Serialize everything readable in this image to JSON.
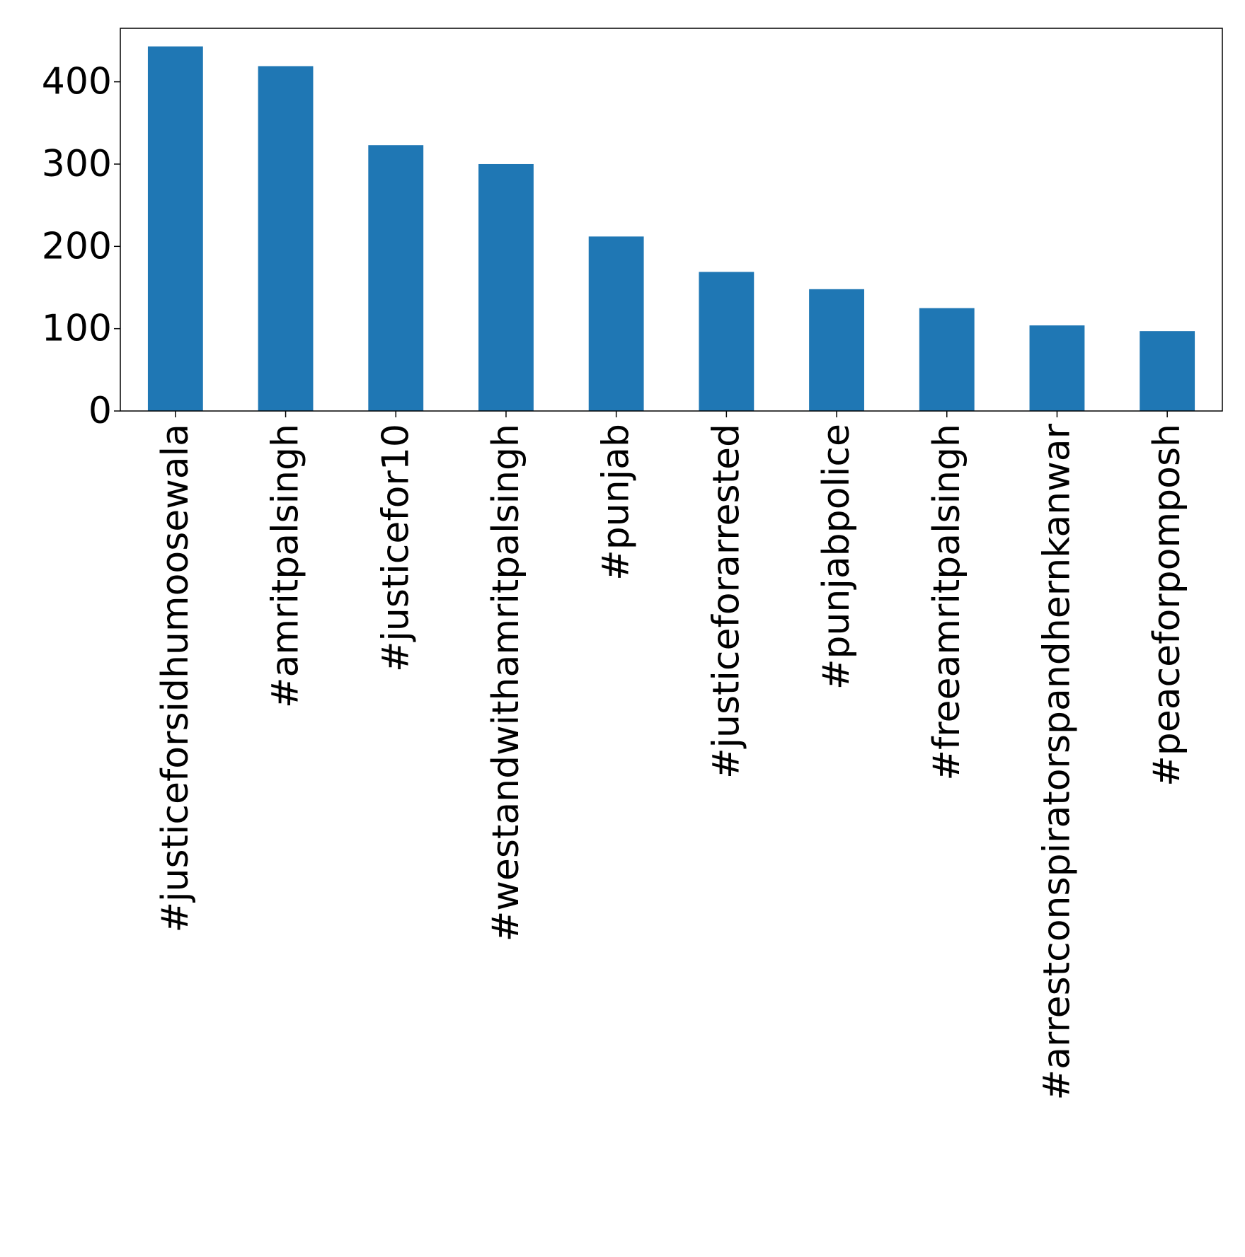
{
  "chart_data": {
    "type": "bar",
    "title": "",
    "xlabel": "",
    "ylabel": "",
    "categories": [
      "#justiceforsidhumoosewala",
      "#amritpalsingh",
      "#justicefor10",
      "#westandwithamritpalsingh",
      "#punjab",
      "#justiceforarrested",
      "#punjabpolice",
      "#freeamritpalsingh",
      "#arrestconspiratorspandhernkanwar",
      "#peaceforpomposh"
    ],
    "values": [
      443,
      419,
      323,
      300,
      212,
      169,
      148,
      125,
      104,
      97
    ],
    "ylim": [
      0,
      465
    ],
    "yticks": [
      0,
      100,
      200,
      300,
      400
    ],
    "bar_color": "#1f77b4",
    "grid": false,
    "legend": "none"
  }
}
